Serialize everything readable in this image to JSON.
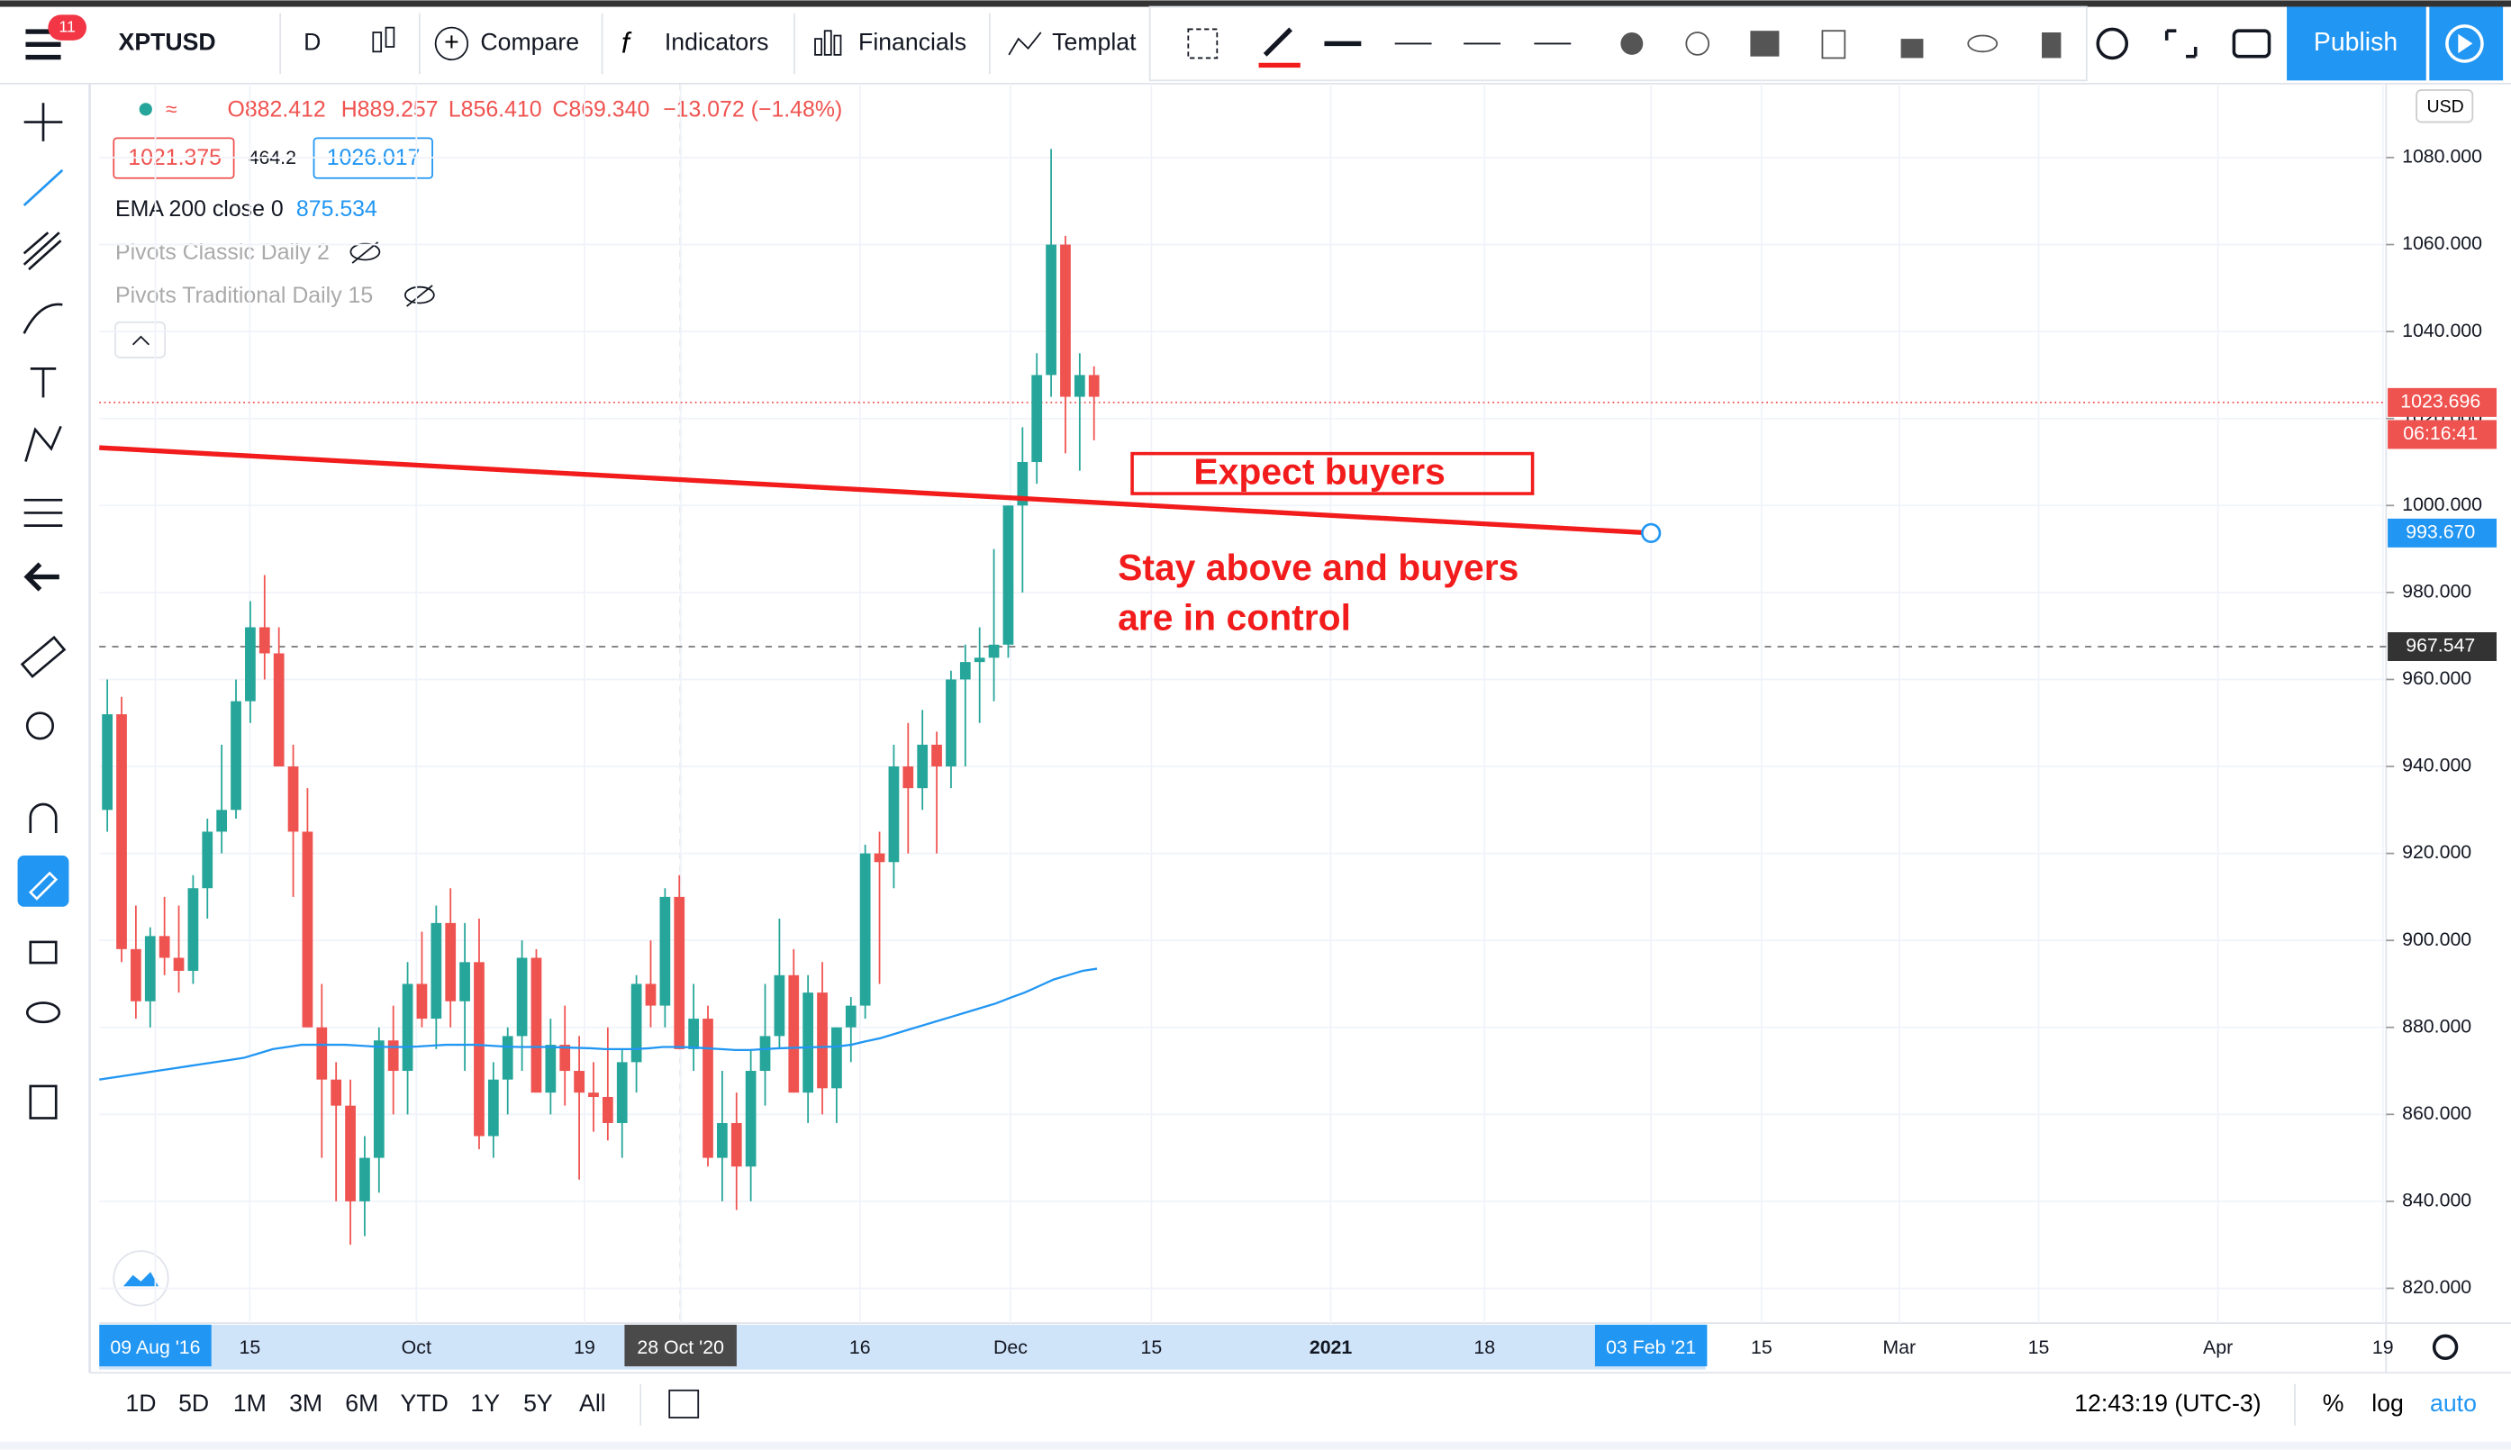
{
  "toolbar": {
    "badge": "11",
    "symbol": "XPTUSD",
    "interval": "D",
    "compare": "Compare",
    "indicators": "Indicators",
    "financials": "Financials",
    "templates": "Templat",
    "publish": "Publish"
  },
  "legend": {
    "open": "O882.412",
    "high": "H889.257",
    "low": "L856.410",
    "close": "C869.340",
    "change": "−13.072 (−1.48%)",
    "bid": "1021.375",
    "spread": "464.2",
    "ask": "1026.017",
    "ema_name": "EMA 200 close 0",
    "ema_value": "875.534",
    "pivots1": "Pivots Classic Daily 2",
    "pivots2": "Pivots Traditional Daily 15"
  },
  "chart_data": {
    "type": "candlestick",
    "currency": "USD",
    "x_labels": [
      "09 Aug '16",
      "15",
      "Oct",
      "19",
      "28 Oct '20",
      "16",
      "Dec",
      "15",
      "2021",
      "18",
      "03 Feb '21",
      "15",
      "Mar",
      "15",
      "Apr",
      "19"
    ],
    "ylim": [
      812,
      1097
    ],
    "yticks": [
      {
        "value": 820,
        "label": "820.000"
      },
      {
        "value": 840,
        "label": "840.000"
      },
      {
        "value": 860,
        "label": "860.000"
      },
      {
        "value": 880,
        "label": "880.000"
      },
      {
        "value": 900,
        "label": "900.000"
      },
      {
        "value": 920,
        "label": "920.000"
      },
      {
        "value": 940,
        "label": "940.000"
      },
      {
        "value": 960,
        "label": "960.000"
      },
      {
        "value": 980,
        "label": "980.000"
      },
      {
        "value": 1000,
        "label": "1000.000"
      },
      {
        "value": 1020,
        "label": "1020.000"
      },
      {
        "value": 1040,
        "label": "1040.000"
      },
      {
        "value": 1060,
        "label": "1060.000"
      },
      {
        "value": 1080,
        "label": "1080.000"
      }
    ],
    "open": [
      930,
      952,
      898,
      886,
      901,
      896,
      893,
      912,
      925,
      930,
      955,
      972,
      966,
      940,
      925,
      880,
      868,
      862,
      840,
      850,
      877,
      870,
      890,
      882,
      904,
      886,
      895,
      855,
      868,
      878,
      896,
      865,
      876,
      870,
      865,
      864,
      858,
      872,
      890,
      885,
      910,
      875,
      882,
      850,
      858,
      848,
      870,
      878,
      892,
      865,
      888,
      866,
      880,
      885,
      920,
      918,
      940,
      935,
      945,
      940,
      960,
      964,
      965,
      968,
      1000,
      1010,
      1030,
      1060,
      1025,
      1030
    ],
    "high": [
      960,
      956,
      908,
      903,
      910,
      908,
      915,
      928,
      945,
      960,
      978,
      984,
      972,
      945,
      935,
      890,
      872,
      868,
      855,
      880,
      885,
      895,
      902,
      908,
      912,
      904,
      905,
      872,
      880,
      900,
      898,
      882,
      885,
      878,
      872,
      880,
      875,
      892,
      900,
      912,
      915,
      890,
      885,
      870,
      865,
      875,
      890,
      905,
      898,
      892,
      895,
      880,
      887,
      922,
      925,
      945,
      950,
      953,
      948,
      962,
      968,
      972,
      990,
      1000,
      1018,
      1035,
      1082,
      1062,
      1035,
      1032
    ],
    "low": [
      925,
      895,
      882,
      880,
      892,
      888,
      890,
      905,
      920,
      928,
      950,
      960,
      940,
      910,
      880,
      850,
      840,
      830,
      832,
      842,
      860,
      860,
      880,
      875,
      880,
      870,
      852,
      850,
      860,
      870,
      865,
      860,
      862,
      845,
      856,
      854,
      850,
      865,
      880,
      880,
      875,
      870,
      848,
      840,
      838,
      840,
      862,
      875,
      865,
      858,
      860,
      858,
      872,
      882,
      890,
      912,
      920,
      930,
      920,
      935,
      940,
      950,
      955,
      965,
      980,
      1005,
      1025,
      1012,
      1008,
      1015
    ],
    "close": [
      952,
      898,
      886,
      901,
      896,
      893,
      912,
      925,
      930,
      955,
      972,
      966,
      940,
      925,
      880,
      868,
      862,
      840,
      850,
      877,
      870,
      890,
      882,
      904,
      886,
      895,
      855,
      868,
      878,
      896,
      865,
      876,
      870,
      865,
      864,
      858,
      872,
      890,
      885,
      910,
      875,
      882,
      850,
      858,
      848,
      870,
      878,
      892,
      865,
      888,
      866,
      880,
      885,
      920,
      918,
      940,
      935,
      945,
      940,
      960,
      964,
      965,
      968,
      1000,
      1010,
      1030,
      1060,
      1025,
      1030,
      1025
    ],
    "up_color": "#26a69a",
    "down_color": "#ef5350",
    "ema_color": "#2196f3",
    "ema": [
      868,
      868.5,
      869,
      869.5,
      870,
      870.5,
      871,
      871.5,
      872,
      872.5,
      873,
      874,
      875,
      875.5,
      876,
      876,
      876,
      876,
      875.8,
      875.6,
      875.5,
      875.5,
      875.6,
      875.8,
      876,
      876,
      876,
      875.8,
      875.6,
      875.5,
      875.5,
      875.5,
      875.4,
      875.3,
      875.2,
      875,
      875,
      875,
      875.2,
      875.5,
      875.5,
      875.4,
      875.2,
      875,
      874.8,
      874.8,
      875,
      875.2,
      875.3,
      875.4,
      875.5,
      875.6,
      876,
      876.8,
      877.5,
      878.5,
      879.5,
      880.5,
      881.5,
      882.5,
      883.5,
      884.5,
      885.5,
      886.8,
      888,
      889.5,
      891,
      892,
      893,
      893.5
    ],
    "trendline": {
      "start": 1013.3,
      "end": 993.67,
      "color": "#f21c1c"
    },
    "annotations": [
      "Expect buyers",
      "Stay above and buyers",
      "are in control"
    ],
    "price_labels": [
      {
        "value": 1023.696,
        "label": "1023.696"
      },
      {
        "value": 993.67,
        "label": "993.670"
      },
      {
        "value": 967.547,
        "label": "967.547"
      }
    ],
    "countdown": "06:16:41"
  },
  "bottom_bar": {
    "ranges": [
      "1D",
      "5D",
      "1M",
      "3M",
      "6M",
      "YTD",
      "1Y",
      "5Y",
      "All"
    ],
    "clock": "12:43:19 (UTC-3)",
    "percent": "%",
    "log": "log",
    "auto": "auto"
  }
}
